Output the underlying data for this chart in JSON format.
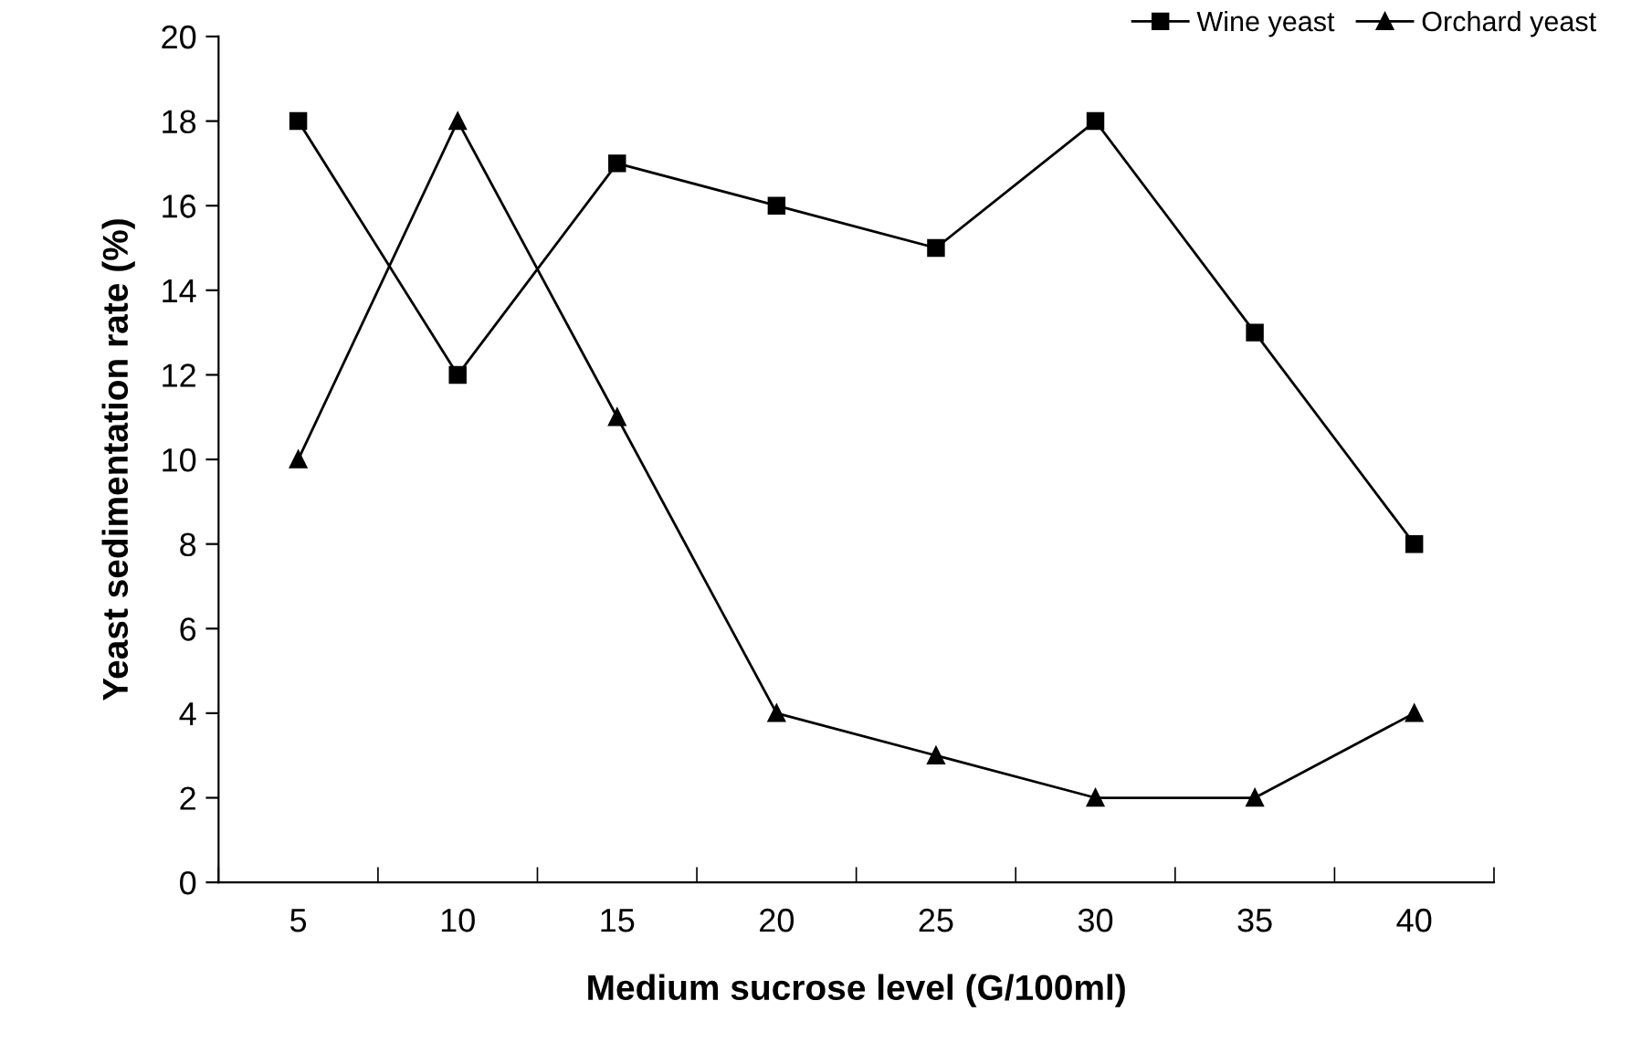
{
  "chart_data": {
    "type": "line",
    "xlabel": "Medium sucrose level (G/100ml)",
    "ylabel": "Yeast sedimentation rate (%)",
    "categories": [
      "5",
      "10",
      "15",
      "20",
      "25",
      "30",
      "35",
      "40"
    ],
    "series": [
      {
        "name": "Wine yeast",
        "color": "#000000",
        "marker": "square",
        "values": [
          18,
          12,
          17,
          16,
          15,
          18,
          13,
          8
        ]
      },
      {
        "name": "Orchard yeast",
        "color": "#000000",
        "marker": "triangle",
        "values": [
          10,
          18,
          11,
          4,
          3,
          2,
          2,
          4
        ]
      }
    ],
    "ylim": [
      0,
      20
    ],
    "yticks": [
      0,
      2,
      4,
      6,
      8,
      10,
      12,
      14,
      16,
      18,
      20
    ],
    "grid": false,
    "legend": "top right",
    "line_style": "solid"
  }
}
